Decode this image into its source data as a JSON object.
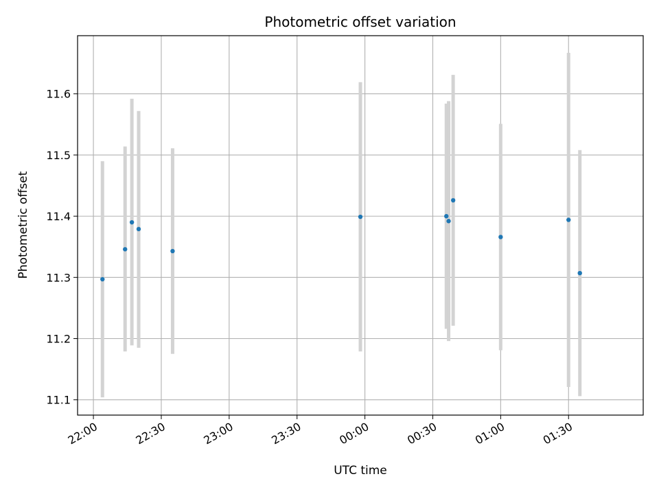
{
  "chart_data": {
    "type": "scatter",
    "title": "Photometric offset variation",
    "xlabel": "UTC time",
    "ylabel": "Photometric offset",
    "x_ticks": [
      "22:00",
      "22:30",
      "23:00",
      "23:30",
      "00:00",
      "00:30",
      "01:00",
      "01:30"
    ],
    "y_ticks": [
      "11.1",
      "11.2",
      "11.3",
      "11.4",
      "11.5",
      "11.6"
    ],
    "x_range": [
      "21:53",
      "02:03"
    ],
    "ylim": [
      11.075,
      11.695
    ],
    "grid": true,
    "colors": {
      "point": "#1f77b4",
      "error_bar": "#d3d3d3",
      "grid": "#b0b0b0"
    },
    "points": [
      {
        "time": "22:04",
        "y": 11.297,
        "low": 11.104,
        "high": 11.49
      },
      {
        "time": "22:14",
        "y": 11.346,
        "low": 11.179,
        "high": 11.514
      },
      {
        "time": "22:17",
        "y": 11.39,
        "low": 11.189,
        "high": 11.592
      },
      {
        "time": "22:20",
        "y": 11.379,
        "low": 11.185,
        "high": 11.572
      },
      {
        "time": "22:35",
        "y": 11.343,
        "low": 11.175,
        "high": 11.511
      },
      {
        "time": "23:58",
        "y": 11.399,
        "low": 11.179,
        "high": 11.619
      },
      {
        "time": "00:36",
        "y": 11.4,
        "low": 11.216,
        "high": 11.584
      },
      {
        "time": "00:37",
        "y": 11.392,
        "low": 11.196,
        "high": 11.588
      },
      {
        "time": "00:39",
        "y": 11.426,
        "low": 11.221,
        "high": 11.631
      },
      {
        "time": "01:00",
        "y": 11.366,
        "low": 11.181,
        "high": 11.551
      },
      {
        "time": "01:30",
        "y": 11.394,
        "low": 11.121,
        "high": 11.667
      },
      {
        "time": "01:35",
        "y": 11.307,
        "low": 11.106,
        "high": 11.508
      }
    ]
  }
}
